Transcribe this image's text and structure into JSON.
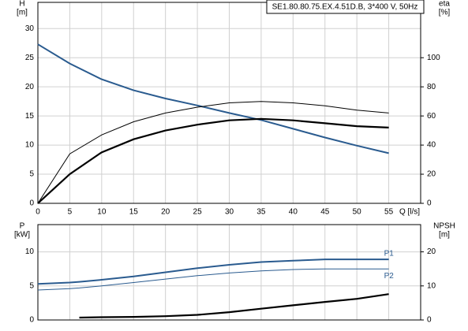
{
  "chart_data": [
    {
      "type": "line",
      "title": "SE1.80.80.75.EX.4.51D.B, 3*400 V, 50Hz",
      "ylabel": "H",
      "ylabel_unit": "[m]",
      "y2label": "eta",
      "y2label_unit": "[%]",
      "xlabel": "Q [l/s]",
      "x": [
        0,
        5,
        10,
        15,
        20,
        25,
        30,
        35,
        40,
        45,
        50,
        55
      ],
      "xlim": [
        0,
        60
      ],
      "xticks": [
        0,
        5,
        10,
        15,
        20,
        25,
        30,
        35,
        40,
        45,
        50,
        55
      ],
      "ylim": [
        0,
        34.5
      ],
      "yticks": [
        0,
        5,
        10,
        15,
        20,
        25,
        30
      ],
      "y2lim": [
        0,
        138
      ],
      "y2ticks": [
        0,
        20,
        40,
        60,
        80,
        100
      ],
      "grid": true,
      "series": [
        {
          "color": "#2a5b8f",
          "width": 2,
          "values": [
            27.3,
            24,
            21.3,
            19.4,
            18,
            16.8,
            15.5,
            14.3,
            12.8,
            11.3,
            9.9,
            8.6
          ]
        },
        {
          "color": "#000000",
          "width": 1,
          "axis": "y2",
          "values": [
            0,
            34,
            47,
            56,
            62,
            66,
            69,
            70,
            69,
            67,
            64,
            62
          ]
        },
        {
          "color": "#000000",
          "width": 2.2,
          "axis": "y2",
          "values": [
            0,
            20,
            35,
            44,
            50,
            54,
            57,
            58,
            57,
            55,
            53,
            52
          ]
        }
      ]
    },
    {
      "type": "line",
      "ylabel": "P",
      "ylabel_unit": "[kW]",
      "y2label": "NPSH",
      "y2label_unit": "[m]",
      "x": [
        0,
        5,
        6.5,
        10,
        15,
        20,
        25,
        30,
        35,
        40,
        45,
        50,
        55
      ],
      "xlim": [
        0,
        60
      ],
      "xticks": [
        0,
        5,
        10,
        15,
        20,
        25,
        30,
        35,
        40,
        45,
        50,
        55
      ],
      "ylim": [
        0,
        14
      ],
      "yticks": [
        0,
        5,
        10
      ],
      "y2lim": [
        0,
        28
      ],
      "y2ticks": [
        0,
        10,
        20
      ],
      "grid": true,
      "series": [
        {
          "name": "P1",
          "color": "#2a5b8f",
          "width": 2,
          "values": [
            5.3,
            5.5,
            5.6,
            5.9,
            6.4,
            7.0,
            7.6,
            8.1,
            8.5,
            8.7,
            8.9,
            8.9,
            8.9
          ]
        },
        {
          "name": "P2",
          "color": "#2a5b8f",
          "width": 1,
          "values": [
            4.4,
            4.6,
            4.7,
            5.0,
            5.5,
            6.0,
            6.5,
            6.9,
            7.2,
            7.4,
            7.5,
            7.5,
            7.5
          ]
        },
        {
          "color": "#000000",
          "width": 2.2,
          "axis": "y2",
          "values": [
            null,
            null,
            0.7,
            0.8,
            0.9,
            1.1,
            1.5,
            2.3,
            3.3,
            4.3,
            5.3,
            6.2,
            7.6
          ]
        }
      ]
    }
  ]
}
